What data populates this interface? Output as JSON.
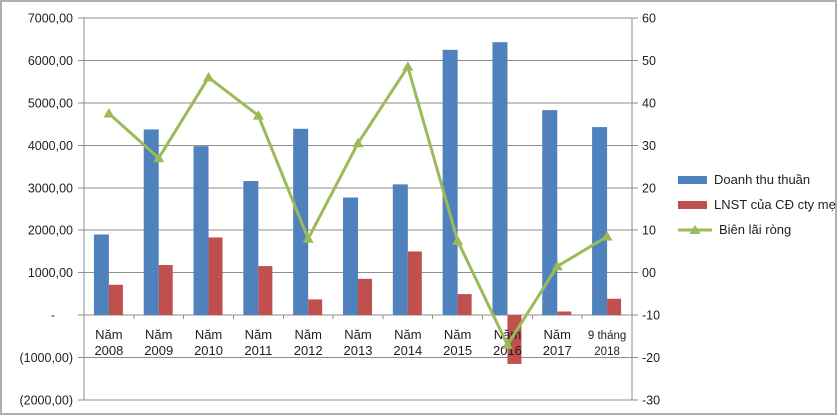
{
  "chart_data": {
    "type": "combo-bar-line",
    "categories": [
      "Năm 2008",
      "Năm 2009",
      "Năm 2010",
      "Năm 2011",
      "Năm 2012",
      "Năm 2013",
      "Năm 2014",
      "Năm 2015",
      "Năm 2016",
      "Năm 2017",
      "9 tháng 2018"
    ],
    "series": [
      {
        "name": "Doanh thu thuần",
        "type": "bar",
        "axis": "left",
        "color": "#4F81BD",
        "values": [
          1900,
          4375,
          3980,
          3160,
          4390,
          2770,
          3080,
          6250,
          6430,
          4830,
          4430
        ]
      },
      {
        "name": "LNST của CĐ cty mẹ",
        "type": "bar",
        "axis": "left",
        "color": "#C0504D",
        "values": [
          715,
          1180,
          1830,
          1155,
          370,
          855,
          1500,
          495,
          -1150,
          85,
          385
        ]
      },
      {
        "name": "Biên lãi ròng",
        "type": "line",
        "axis": "right",
        "color": "#9BBB59",
        "values": [
          37.5,
          27,
          46,
          37,
          8,
          30.5,
          48.5,
          7.5,
          -17,
          1.5,
          8.5
        ]
      }
    ],
    "left_axis": {
      "min": -2000,
      "max": 7000,
      "step": 1000,
      "tick_labels": [
        "7000,00",
        "6000,00",
        "5000,00",
        "4000,00",
        "3000,00",
        "2000,00",
        "1000,00",
        "-",
        "(1000,00)",
        "(2000,00)"
      ]
    },
    "right_axis": {
      "min": -30,
      "max": 60,
      "step": 10,
      "tick_labels": [
        "60",
        "50",
        "40",
        "30",
        "20",
        "10",
        "00",
        "-10",
        "-20",
        "-30"
      ]
    },
    "grid": true,
    "legend_position": "right",
    "grid_color": "#8e8e8e",
    "text_color": "#1f1f1f"
  }
}
